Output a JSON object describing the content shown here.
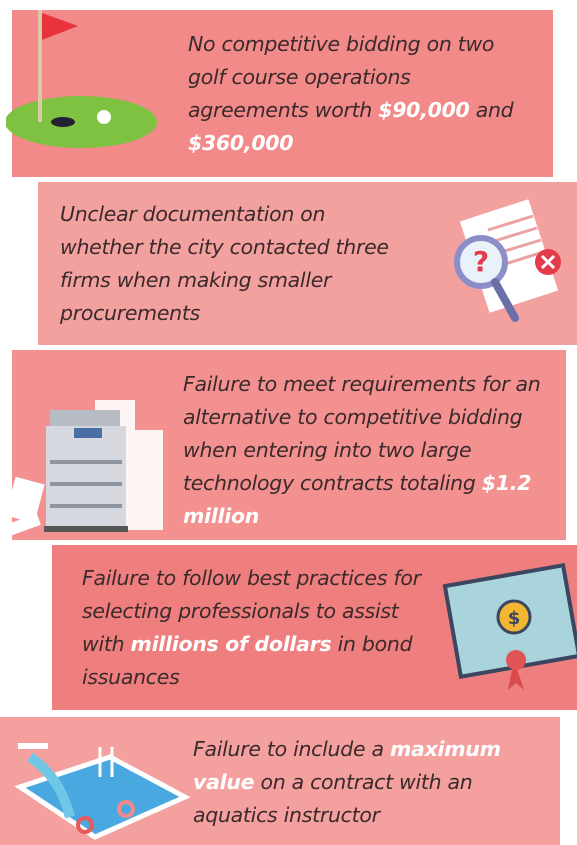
{
  "items": [
    {
      "parts": [
        {
          "text": "No competitive bidding on two golf course operations agreements worth "
        },
        {
          "text": "$90,000",
          "emphasis": true
        },
        {
          "text": " and "
        },
        {
          "text": "$360,000",
          "emphasis": true
        }
      ]
    },
    {
      "parts": [
        {
          "text": "Unclear documentation on whether the city contacted three firms when making smaller procurements"
        }
      ]
    },
    {
      "parts": [
        {
          "text": "Failure to meet requirements for an alternative to competitive bidding when entering into two large technology contracts totaling "
        },
        {
          "text": "$1.2 million",
          "emphasis": true
        }
      ]
    },
    {
      "parts": [
        {
          "text": "Failure to follow best practices for selecting professionals to assist with "
        },
        {
          "text": "millions of dollars",
          "emphasis": true
        },
        {
          "text": " in bond issuances"
        }
      ]
    },
    {
      "parts": [
        {
          "text": "Failure to include a "
        },
        {
          "text": "maximum value",
          "emphasis": true
        },
        {
          "text": " on a contract with an aquatics instructor"
        }
      ]
    }
  ]
}
